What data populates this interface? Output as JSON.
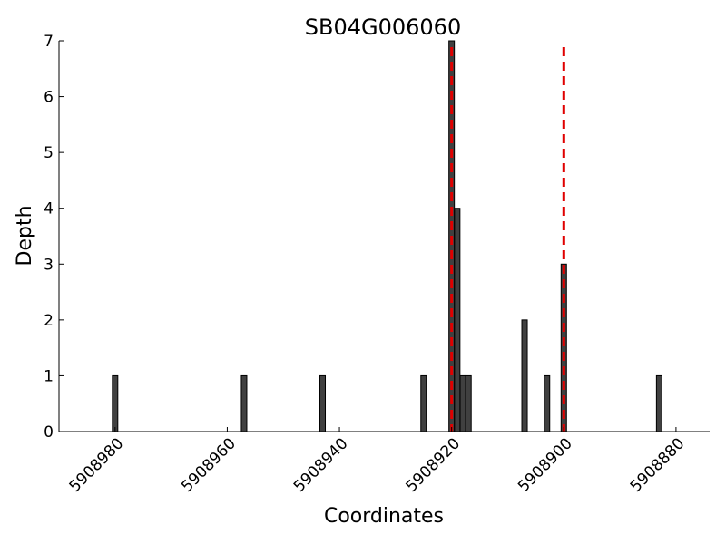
{
  "chart_data": {
    "type": "bar",
    "title": "SB04G006060",
    "xlabel": "Coordinates",
    "ylabel": "Depth",
    "x_axis_reversed": true,
    "xlim": [
      5908990,
      5908874
    ],
    "ylim": [
      0,
      7
    ],
    "xticks": [
      5908980,
      5908960,
      5908940,
      5908920,
      5908900,
      5908880
    ],
    "yticks": [
      0,
      1,
      2,
      3,
      4,
      5,
      6,
      7
    ],
    "grid": false,
    "bar_color": "#404040",
    "marker_color": "#e00000",
    "points": [
      {
        "x": 5908980,
        "y": 1
      },
      {
        "x": 5908957,
        "y": 1
      },
      {
        "x": 5908943,
        "y": 1
      },
      {
        "x": 5908925,
        "y": 1
      },
      {
        "x": 5908920,
        "y": 7
      },
      {
        "x": 5908919,
        "y": 4
      },
      {
        "x": 5908918,
        "y": 1
      },
      {
        "x": 5908917,
        "y": 1
      },
      {
        "x": 5908907,
        "y": 2
      },
      {
        "x": 5908903,
        "y": 1
      },
      {
        "x": 5908900,
        "y": 3
      },
      {
        "x": 5908883,
        "y": 1
      }
    ],
    "reference_lines": [
      5908920,
      5908900
    ]
  }
}
